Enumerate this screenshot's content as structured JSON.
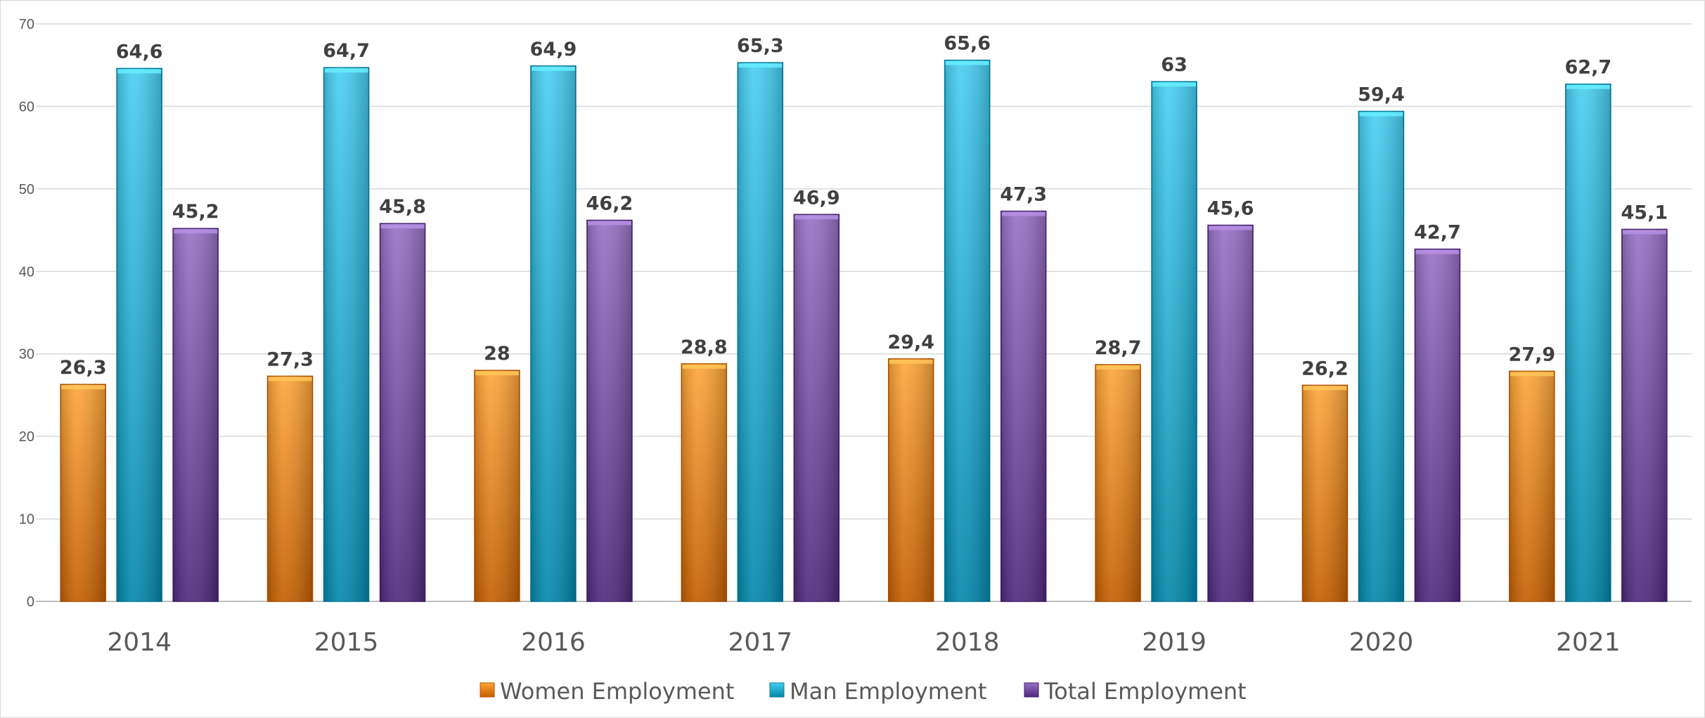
{
  "chart_data": {
    "type": "bar",
    "title": "",
    "categories": [
      "2014",
      "2015",
      "2016",
      "2017",
      "2018",
      "2019",
      "2020",
      "2021"
    ],
    "series": [
      {
        "name": "Women Employment",
        "color": "#f08a1c",
        "values": [
          26.3,
          27.3,
          28,
          28.8,
          29.4,
          28.7,
          26.2,
          27.9
        ],
        "labels": [
          "26,3",
          "27,3",
          "28",
          "28,8",
          "29,4",
          "28,7",
          "26,2",
          "27,9"
        ]
      },
      {
        "name": "Man Employment",
        "color": "#2bb3d6",
        "values": [
          64.6,
          64.7,
          64.9,
          65.3,
          65.6,
          63,
          59.4,
          62.7
        ],
        "labels": [
          "64,6",
          "64,7",
          "64,9",
          "65,3",
          "65,6",
          "63",
          "59,4",
          "62,7"
        ]
      },
      {
        "name": "Total Employment",
        "color": "#7b55a8",
        "values": [
          45.2,
          45.8,
          46.2,
          46.9,
          47.3,
          45.6,
          42.7,
          45.1
        ],
        "labels": [
          "45,2",
          "45,8",
          "46,2",
          "46,9",
          "47,3",
          "45,6",
          "42,7",
          "45,1"
        ]
      }
    ],
    "xlabel": "",
    "ylabel": "",
    "ylim": [
      0,
      70
    ],
    "yticks": [
      "0",
      "10",
      "20",
      "30",
      "40",
      "50",
      "60",
      "70"
    ],
    "grid": true,
    "legend_position": "bottom"
  }
}
